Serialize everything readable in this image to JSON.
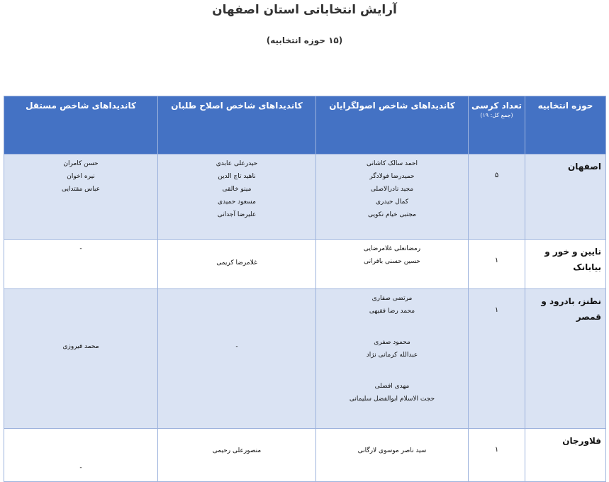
{
  "title": "آرایش انتخاباتی استان اصفهان",
  "subtitle": "(۱۵ حوزه انتخابیه)",
  "table": {
    "headers": {
      "district": "حوزه انتخابیه",
      "seats": "تعداد کرسی",
      "seats_total": "(جمع کل: ۱۹)",
      "principlist": "کاندیداهای شاخص اصولگرایان",
      "reformist": "کاندیداهای شاخص اصلاح طلبان",
      "independent": "کاندیداهای شاخص مستقل"
    },
    "rows": [
      {
        "district": "اصفهان",
        "seats": "۵",
        "principlist": [
          "احمد سالک کاشانی",
          "حمیدرضا فولادگر",
          "مجید نادرالاصلی",
          "کمال حیدری",
          "مجتبی خیام نکویی"
        ],
        "reformist": [
          "حیدرعلی عابدی",
          "ناهید تاج الدین",
          "مینو خالقی",
          "مسعود حمیدی",
          "علیرضا آجدانی"
        ],
        "independent": [
          "حسن کامران",
          "نیره اخوان",
          "عباس مقتدایی"
        ]
      },
      {
        "district": "نایین و خور و بیابانک",
        "seats": "۱",
        "principlist": [
          "رمضانعلی غلامرضایی",
          "حسین حسنی بافرانی"
        ],
        "reformist": [
          "غلامرضا کریمی"
        ],
        "independent": [
          "-"
        ]
      },
      {
        "district": "نطنز، بادرود و قمصر",
        "seats": "۱",
        "principlist": [
          "مرتضی صفاری",
          "محمد رضا فقیهی",
          "محمود صفری",
          "عبدالله کرمانی نژاد",
          "مهدی افضلی",
          "حجت الاسلام ابوالفضل سلیمانی"
        ],
        "reformist": [
          "-"
        ],
        "independent": [
          "محمد فیروزی"
        ]
      },
      {
        "district": "فلاورجان",
        "seats": "۱",
        "principlist": [
          "سید ناصر موسوی لارگانی"
        ],
        "reformist": [
          "منصورعلی رحیمی"
        ],
        "independent": [
          "-"
        ]
      }
    ]
  },
  "colors": {
    "header_bg": "#4472c4",
    "row_shade": "#dae3f3",
    "border": "#9db3dd"
  }
}
